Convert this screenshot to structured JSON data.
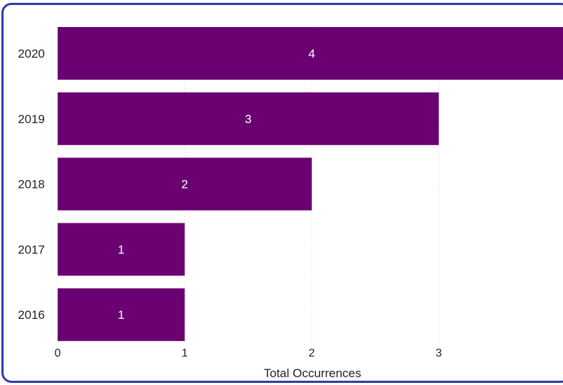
{
  "colors": {
    "bar": "#6a0072",
    "panel_border": "#2e3aa8",
    "data_label": "#ffffff"
  },
  "chart_data": {
    "type": "bar",
    "orientation": "horizontal",
    "categories": [
      "2020",
      "2019",
      "2018",
      "2017",
      "2016"
    ],
    "values": [
      4,
      3,
      2,
      1,
      1
    ],
    "xlabel": "Total Occurrences",
    "xlim": [
      0,
      4
    ],
    "x_ticks": [
      "0",
      "1",
      "2",
      "3"
    ],
    "grid": true,
    "data_labels": true
  }
}
